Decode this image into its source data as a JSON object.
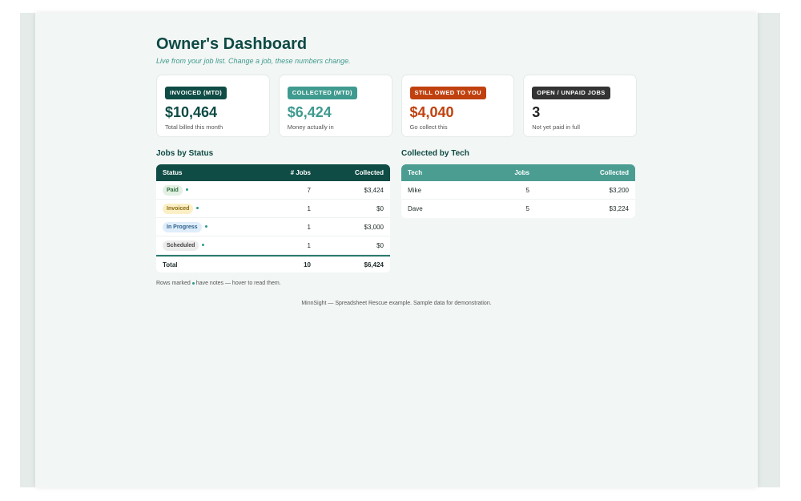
{
  "header": {
    "title": "Owner's Dashboard",
    "subtitle": "Live from your job list. Change a job, these numbers change."
  },
  "cards": [
    {
      "badge": "INVOICED (MTD)",
      "value": "$10,464",
      "note": "Total billed this month",
      "badge_color": "#0f4c45",
      "value_color": "#0d4a44"
    },
    {
      "badge": "COLLECTED (MTD)",
      "value": "$6,424",
      "note": "Money actually in",
      "badge_color": "#3f9a8f",
      "value_color": "#3f9a8f"
    },
    {
      "badge": "STILL OWED TO YOU",
      "value": "$4,040",
      "note": "Go collect this",
      "badge_color": "#c0410f",
      "value_color": "#c0410f"
    },
    {
      "badge": "OPEN / UNPAID JOBS",
      "value": "3",
      "note": "Not yet paid in full",
      "badge_color": "#333333",
      "value_color": "#222222"
    }
  ],
  "status_table": {
    "title": "Jobs by Status",
    "columns": [
      "Status",
      "# Jobs",
      "Collected"
    ],
    "rows": [
      {
        "status": "Paid",
        "jobs": "7",
        "collected": "$3,424",
        "pill_bg": "#e2f1e4",
        "pill_fg": "#2d6b3a"
      },
      {
        "status": "Invoiced",
        "jobs": "1",
        "collected": "$0",
        "pill_bg": "#fbefc6",
        "pill_fg": "#8a6a12"
      },
      {
        "status": "In Progress",
        "jobs": "1",
        "collected": "$3,000",
        "pill_bg": "#dfeefa",
        "pill_fg": "#2d5f8f"
      },
      {
        "status": "Scheduled",
        "jobs": "1",
        "collected": "$0",
        "pill_bg": "#ececec",
        "pill_fg": "#444444"
      }
    ],
    "total": {
      "label": "Total",
      "jobs": "10",
      "collected": "$6,424"
    }
  },
  "tech_table": {
    "title": "Collected by Tech",
    "columns": [
      "Tech",
      "Jobs",
      "Collected"
    ],
    "rows": [
      {
        "tech": "Mike",
        "jobs": "5",
        "collected": "$3,200"
      },
      {
        "tech": "Dave",
        "jobs": "5",
        "collected": "$3,224"
      }
    ]
  },
  "notes": {
    "before_dot": "Rows marked",
    "after_dot": "have notes — hover to read them."
  },
  "footer": "MinnSight — Spreadsheet Rescue example. Sample data for demonstration."
}
